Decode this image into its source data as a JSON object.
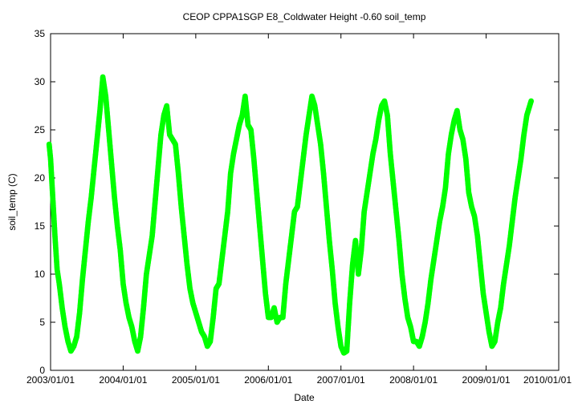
{
  "chart_data": {
    "type": "scatter",
    "title": "CEOP CPPA1SGP E8_Coldwater Height -0.60 soil_temp",
    "xlabel": "Date",
    "ylabel": "soil_temp (C)",
    "x_range": [
      "2003/01/01",
      "2010/01/01"
    ],
    "ylim": [
      0,
      35
    ],
    "y_ticks": [
      0,
      5,
      10,
      15,
      20,
      25,
      30,
      35
    ],
    "y_tick_labels": [
      "0",
      "5",
      "10",
      "15",
      "20",
      "25",
      "30",
      "35"
    ],
    "x_ticks": [
      "2003/01/01",
      "2004/01/01",
      "2005/01/01",
      "2006/01/01",
      "2007/01/01",
      "2008/01/01",
      "2009/01/01",
      "2010/01/01"
    ],
    "x_tick_labels": [
      "2003/01/01",
      "2004/01/01",
      "2005/01/01",
      "2006/01/01",
      "2007/01/01",
      "2008/01/01",
      "2009/01/01",
      "2010/01/01"
    ],
    "grid": false,
    "series": [
      {
        "name": "soil_temp",
        "color": "#00ff00",
        "x_unit": "years since 2003-01-01",
        "points": [
          [
            -0.02,
            23.5
          ],
          [
            0.0,
            22.0
          ],
          [
            0.03,
            18.0
          ],
          [
            0.06,
            14.0
          ],
          [
            0.09,
            10.5
          ],
          [
            0.12,
            9.0
          ],
          [
            0.16,
            6.5
          ],
          [
            0.2,
            4.5
          ],
          [
            0.24,
            3.0
          ],
          [
            0.28,
            2.0
          ],
          [
            0.32,
            2.5
          ],
          [
            0.36,
            3.5
          ],
          [
            0.4,
            6.0
          ],
          [
            0.44,
            9.5
          ],
          [
            0.48,
            12.5
          ],
          [
            0.52,
            15.5
          ],
          [
            0.56,
            18.0
          ],
          [
            0.6,
            21.0
          ],
          [
            0.64,
            24.0
          ],
          [
            0.68,
            27.0
          ],
          [
            0.72,
            30.5
          ],
          [
            0.76,
            28.5
          ],
          [
            0.8,
            25.0
          ],
          [
            0.84,
            21.5
          ],
          [
            0.88,
            18.0
          ],
          [
            0.92,
            15.0
          ],
          [
            0.96,
            12.5
          ],
          [
            1.0,
            9.0
          ],
          [
            1.04,
            7.0
          ],
          [
            1.08,
            5.5
          ],
          [
            1.12,
            4.5
          ],
          [
            1.16,
            3.0
          ],
          [
            1.2,
            2.0
          ],
          [
            1.24,
            3.5
          ],
          [
            1.28,
            6.5
          ],
          [
            1.32,
            10.0
          ],
          [
            1.36,
            12.0
          ],
          [
            1.4,
            14.0
          ],
          [
            1.44,
            17.5
          ],
          [
            1.48,
            21.0
          ],
          [
            1.52,
            24.5
          ],
          [
            1.56,
            26.5
          ],
          [
            1.6,
            27.5
          ],
          [
            1.64,
            24.5
          ],
          [
            1.68,
            24.0
          ],
          [
            1.72,
            23.5
          ],
          [
            1.76,
            20.5
          ],
          [
            1.8,
            17.0
          ],
          [
            1.84,
            14.0
          ],
          [
            1.88,
            11.0
          ],
          [
            1.92,
            8.5
          ],
          [
            1.96,
            7.0
          ],
          [
            2.0,
            6.0
          ],
          [
            2.04,
            5.0
          ],
          [
            2.08,
            4.0
          ],
          [
            2.12,
            3.5
          ],
          [
            2.16,
            2.5
          ],
          [
            2.2,
            3.0
          ],
          [
            2.24,
            5.5
          ],
          [
            2.28,
            8.5
          ],
          [
            2.32,
            9.0
          ],
          [
            2.36,
            11.5
          ],
          [
            2.4,
            14.0
          ],
          [
            2.44,
            16.5
          ],
          [
            2.48,
            20.5
          ],
          [
            2.52,
            22.5
          ],
          [
            2.56,
            24.0
          ],
          [
            2.6,
            25.5
          ],
          [
            2.64,
            26.5
          ],
          [
            2.68,
            28.5
          ],
          [
            2.72,
            25.5
          ],
          [
            2.76,
            25.0
          ],
          [
            2.8,
            22.0
          ],
          [
            2.84,
            18.5
          ],
          [
            2.88,
            15.0
          ],
          [
            2.92,
            11.5
          ],
          [
            2.96,
            8.0
          ],
          [
            3.0,
            5.5
          ],
          [
            3.04,
            5.5
          ],
          [
            3.08,
            6.5
          ],
          [
            3.12,
            5.0
          ],
          [
            3.16,
            5.5
          ],
          [
            3.2,
            5.5
          ],
          [
            3.24,
            9.0
          ],
          [
            3.28,
            11.5
          ],
          [
            3.32,
            14.0
          ],
          [
            3.36,
            16.5
          ],
          [
            3.4,
            17.0
          ],
          [
            3.44,
            19.5
          ],
          [
            3.48,
            22.0
          ],
          [
            3.52,
            24.5
          ],
          [
            3.56,
            26.5
          ],
          [
            3.6,
            28.5
          ],
          [
            3.64,
            27.5
          ],
          [
            3.68,
            25.5
          ],
          [
            3.72,
            23.5
          ],
          [
            3.76,
            20.5
          ],
          [
            3.8,
            17.0
          ],
          [
            3.84,
            13.5
          ],
          [
            3.88,
            10.5
          ],
          [
            3.92,
            7.0
          ],
          [
            3.96,
            4.5
          ],
          [
            4.0,
            2.5
          ],
          [
            4.04,
            1.8
          ],
          [
            4.08,
            2.0
          ],
          [
            4.12,
            7.0
          ],
          [
            4.16,
            11.0
          ],
          [
            4.2,
            13.5
          ],
          [
            4.24,
            10.0
          ],
          [
            4.28,
            12.5
          ],
          [
            4.32,
            16.5
          ],
          [
            4.36,
            18.5
          ],
          [
            4.4,
            20.5
          ],
          [
            4.44,
            22.5
          ],
          [
            4.48,
            24.0
          ],
          [
            4.52,
            26.0
          ],
          [
            4.56,
            27.5
          ],
          [
            4.6,
            28.0
          ],
          [
            4.64,
            26.5
          ],
          [
            4.68,
            22.5
          ],
          [
            4.72,
            19.5
          ],
          [
            4.76,
            16.5
          ],
          [
            4.8,
            13.5
          ],
          [
            4.84,
            10.0
          ],
          [
            4.88,
            7.5
          ],
          [
            4.92,
            5.5
          ],
          [
            4.96,
            4.5
          ],
          [
            5.0,
            3.0
          ],
          [
            5.04,
            3.0
          ],
          [
            5.08,
            2.5
          ],
          [
            5.12,
            3.5
          ],
          [
            5.16,
            5.0
          ],
          [
            5.2,
            7.0
          ],
          [
            5.24,
            9.5
          ],
          [
            5.28,
            11.5
          ],
          [
            5.32,
            13.5
          ],
          [
            5.36,
            15.5
          ],
          [
            5.4,
            17.0
          ],
          [
            5.44,
            19.0
          ],
          [
            5.48,
            22.5
          ],
          [
            5.52,
            24.5
          ],
          [
            5.56,
            26.0
          ],
          [
            5.6,
            27.0
          ],
          [
            5.64,
            25.0
          ],
          [
            5.68,
            24.0
          ],
          [
            5.72,
            22.0
          ],
          [
            5.76,
            18.5
          ],
          [
            5.8,
            17.0
          ],
          [
            5.84,
            16.0
          ],
          [
            5.88,
            14.0
          ],
          [
            5.92,
            11.0
          ],
          [
            5.96,
            8.0
          ],
          [
            6.0,
            6.0
          ],
          [
            6.04,
            4.0
          ],
          [
            6.08,
            2.5
          ],
          [
            6.12,
            3.0
          ],
          [
            6.16,
            5.0
          ],
          [
            6.2,
            6.5
          ],
          [
            6.24,
            9.0
          ],
          [
            6.28,
            11.0
          ],
          [
            6.32,
            13.0
          ],
          [
            6.36,
            15.5
          ],
          [
            6.4,
            18.0
          ],
          [
            6.44,
            20.0
          ],
          [
            6.48,
            22.0
          ],
          [
            6.52,
            24.5
          ],
          [
            6.56,
            26.5
          ],
          [
            6.6,
            27.5
          ],
          [
            6.62,
            28.0
          ]
        ]
      }
    ]
  }
}
